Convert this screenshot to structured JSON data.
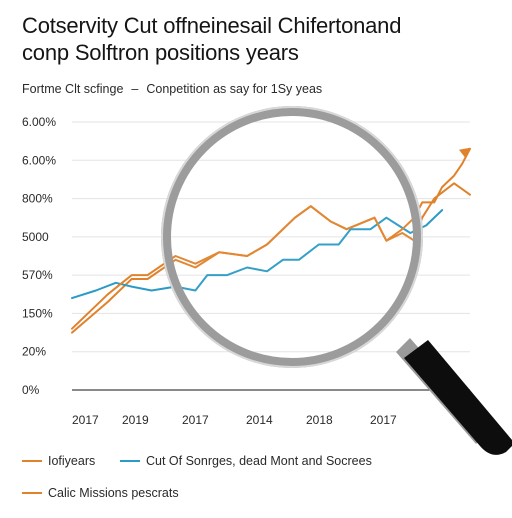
{
  "title_line1": "Cotservity Cut offneinesail Chifertonand",
  "title_line2": "conp Solftron positions years",
  "subtitle": {
    "left": "Fortme Clt scfinge",
    "dash": "–",
    "right": "Conpetition as say for 1Sy yeas"
  },
  "colors": {
    "orange": "#e0822b",
    "blue": "#2a9bc7",
    "grid": "#e3e3e3",
    "axis": "#444444"
  },
  "legend": {
    "row1_orange": "Iofiyears",
    "row1_blue": "Cut Of Sonrges, dead Mont and Socrees",
    "row2_orange": "Calic Missions pescrats"
  },
  "chart_data": {
    "type": "line",
    "title": "Cotservity Cut offneinesail Chifertonand conp Solftron positions years",
    "subtitle": "Fortme Clt scfinge – Conpetition as say for 1Sy yeas",
    "y_tick_labels": [
      "0%",
      "20%",
      "150%",
      "570%",
      "5000",
      "800%",
      "6.00%",
      "6.00%"
    ],
    "x_tick_labels": [
      "2017",
      "2019",
      "2017",
      "2014",
      "2018",
      "2017"
    ],
    "xlim": [
      0,
      1
    ],
    "ylim": [
      0,
      7
    ],
    "grid": true,
    "legend_position": "bottom",
    "overlay_icon": "magnifying-glass-icon",
    "series": [
      {
        "name": "Iofiyears",
        "color": "#e0822b",
        "x": [
          0.0,
          0.09,
          0.15,
          0.19,
          0.26,
          0.31,
          0.37,
          0.44,
          0.49,
          0.56,
          0.6,
          0.65,
          0.69,
          0.76,
          0.79,
          0.83,
          0.86,
          0.88,
          0.91,
          0.96,
          1.0
        ],
        "y": [
          1.5,
          2.3,
          2.9,
          2.9,
          3.4,
          3.2,
          3.6,
          3.5,
          3.8,
          4.5,
          4.8,
          4.4,
          4.2,
          4.5,
          3.9,
          4.1,
          3.9,
          4.5,
          5.0,
          5.4,
          5.1
        ],
        "values_note": null
      },
      {
        "name": "Cut Of Sonrges, dead Mont and Socrees",
        "color": "#2a9bc7",
        "x": [
          0.0,
          0.06,
          0.11,
          0.15,
          0.2,
          0.26,
          0.31,
          0.34,
          0.39,
          0.44,
          0.49,
          0.53,
          0.57,
          0.62,
          0.67,
          0.7,
          0.75,
          0.79,
          0.82,
          0.85,
          0.89,
          0.93
        ],
        "y": [
          2.4,
          2.6,
          2.8,
          2.7,
          2.6,
          2.7,
          2.6,
          3.0,
          3.0,
          3.2,
          3.1,
          3.4,
          3.4,
          3.8,
          3.8,
          4.2,
          4.2,
          4.5,
          4.3,
          4.1,
          4.3,
          4.7
        ]
      },
      {
        "name": "Calic Missions pescrats",
        "color": "#e0822b",
        "x": [
          0.0,
          0.09,
          0.15,
          0.19,
          0.26,
          0.31,
          0.37,
          0.44,
          0.49,
          0.56,
          0.6,
          0.65,
          0.69,
          0.76,
          0.79,
          0.83,
          0.86,
          0.88,
          0.91,
          0.93,
          0.96,
          0.98,
          1.0
        ],
        "y": [
          1.6,
          2.5,
          3.0,
          3.0,
          3.5,
          3.3,
          3.6,
          3.5,
          3.8,
          4.5,
          4.8,
          4.4,
          4.2,
          4.5,
          3.9,
          4.2,
          4.5,
          4.9,
          4.9,
          5.3,
          5.6,
          5.9,
          6.3
        ]
      }
    ]
  }
}
